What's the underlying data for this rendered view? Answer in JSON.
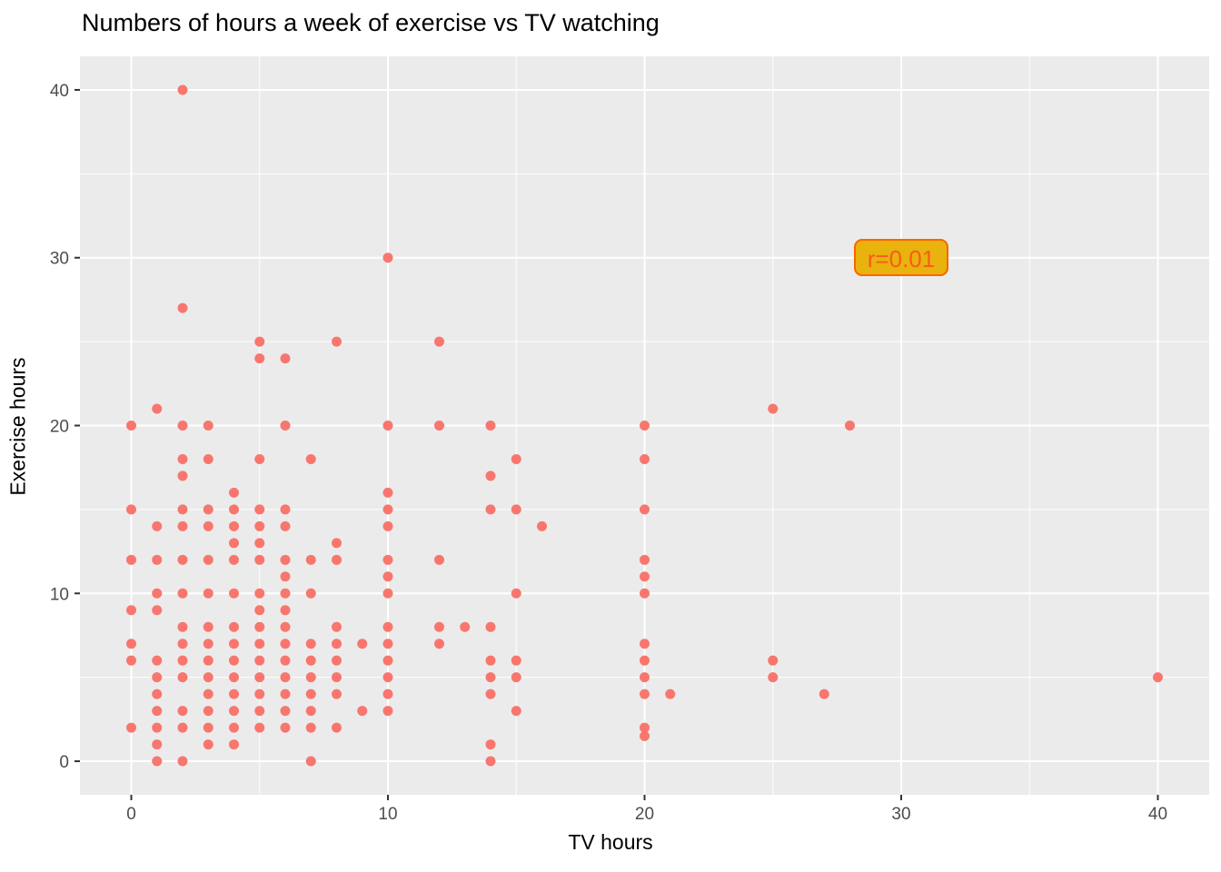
{
  "title": "Numbers of hours a week of exercise vs TV watching",
  "chart_data": {
    "type": "scatter",
    "title": "Numbers of hours a week of exercise vs TV watching",
    "xlabel": "TV hours",
    "ylabel": "Exercise hours",
    "xlim": [
      -2,
      42
    ],
    "ylim": [
      -2,
      42
    ],
    "x_ticks": [
      0,
      10,
      20,
      30,
      40
    ],
    "y_ticks": [
      0,
      10,
      20,
      30,
      40
    ],
    "x_minor_ticks": [
      5,
      15,
      25,
      35
    ],
    "y_minor_ticks": [
      5,
      15,
      25,
      35
    ],
    "grid": true,
    "legend": "none",
    "panel_bg": "#EBEBEB",
    "grid_color": "#FFFFFF",
    "point_color": "#F8766D",
    "point_radius": 5.5,
    "tick_color": "#333333",
    "tick_label_color": "#4D4D4D",
    "annotation": {
      "text": "r=0.01",
      "x": 30,
      "y": 30,
      "fill": "#E8B30C",
      "border_color": "#FB6400",
      "text_color": "#F85C1A"
    },
    "points": [
      [
        2,
        40
      ],
      [
        10,
        30
      ],
      [
        2,
        27
      ],
      [
        5,
        25
      ],
      [
        8,
        25
      ],
      [
        12,
        25
      ],
      [
        5,
        24
      ],
      [
        6,
        24
      ],
      [
        1,
        21
      ],
      [
        25,
        21
      ],
      [
        0,
        20
      ],
      [
        2,
        20
      ],
      [
        3,
        20
      ],
      [
        6,
        20
      ],
      [
        10,
        20
      ],
      [
        12,
        20
      ],
      [
        14,
        20
      ],
      [
        20,
        20
      ],
      [
        28,
        20
      ],
      [
        2,
        18
      ],
      [
        3,
        18
      ],
      [
        5,
        18
      ],
      [
        7,
        18
      ],
      [
        15,
        18
      ],
      [
        20,
        18
      ],
      [
        2,
        17
      ],
      [
        14,
        17
      ],
      [
        4,
        16
      ],
      [
        10,
        16
      ],
      [
        0,
        15
      ],
      [
        2,
        15
      ],
      [
        3,
        15
      ],
      [
        4,
        15
      ],
      [
        5,
        15
      ],
      [
        6,
        15
      ],
      [
        10,
        15
      ],
      [
        14,
        15
      ],
      [
        15,
        15
      ],
      [
        20,
        15
      ],
      [
        1,
        14
      ],
      [
        2,
        14
      ],
      [
        3,
        14
      ],
      [
        4,
        14
      ],
      [
        5,
        14
      ],
      [
        6,
        14
      ],
      [
        10,
        14
      ],
      [
        16,
        14
      ],
      [
        4,
        13
      ],
      [
        5,
        13
      ],
      [
        8,
        13
      ],
      [
        0,
        12
      ],
      [
        1,
        12
      ],
      [
        2,
        12
      ],
      [
        3,
        12
      ],
      [
        4,
        12
      ],
      [
        5,
        12
      ],
      [
        6,
        12
      ],
      [
        7,
        12
      ],
      [
        8,
        12
      ],
      [
        10,
        12
      ],
      [
        12,
        12
      ],
      [
        20,
        12
      ],
      [
        6,
        11
      ],
      [
        10,
        11
      ],
      [
        20,
        11
      ],
      [
        1,
        10
      ],
      [
        2,
        10
      ],
      [
        3,
        10
      ],
      [
        4,
        10
      ],
      [
        5,
        10
      ],
      [
        6,
        10
      ],
      [
        7,
        10
      ],
      [
        10,
        10
      ],
      [
        15,
        10
      ],
      [
        20,
        10
      ],
      [
        0,
        9
      ],
      [
        1,
        9
      ],
      [
        5,
        9
      ],
      [
        6,
        9
      ],
      [
        2,
        8
      ],
      [
        3,
        8
      ],
      [
        4,
        8
      ],
      [
        5,
        8
      ],
      [
        6,
        8
      ],
      [
        8,
        8
      ],
      [
        10,
        8
      ],
      [
        12,
        8
      ],
      [
        13,
        8
      ],
      [
        14,
        8
      ],
      [
        0,
        7
      ],
      [
        2,
        7
      ],
      [
        3,
        7
      ],
      [
        4,
        7
      ],
      [
        5,
        7
      ],
      [
        6,
        7
      ],
      [
        7,
        7
      ],
      [
        8,
        7
      ],
      [
        9,
        7
      ],
      [
        10,
        7
      ],
      [
        12,
        7
      ],
      [
        20,
        7
      ],
      [
        0,
        6
      ],
      [
        1,
        6
      ],
      [
        2,
        6
      ],
      [
        3,
        6
      ],
      [
        4,
        6
      ],
      [
        5,
        6
      ],
      [
        6,
        6
      ],
      [
        7,
        6
      ],
      [
        8,
        6
      ],
      [
        10,
        6
      ],
      [
        14,
        6
      ],
      [
        15,
        6
      ],
      [
        20,
        6
      ],
      [
        25,
        6
      ],
      [
        1,
        5
      ],
      [
        2,
        5
      ],
      [
        3,
        5
      ],
      [
        4,
        5
      ],
      [
        5,
        5
      ],
      [
        6,
        5
      ],
      [
        7,
        5
      ],
      [
        8,
        5
      ],
      [
        10,
        5
      ],
      [
        14,
        5
      ],
      [
        15,
        5
      ],
      [
        20,
        5
      ],
      [
        25,
        5
      ],
      [
        40,
        5
      ],
      [
        1,
        4
      ],
      [
        3,
        4
      ],
      [
        4,
        4
      ],
      [
        5,
        4
      ],
      [
        6,
        4
      ],
      [
        7,
        4
      ],
      [
        8,
        4
      ],
      [
        10,
        4
      ],
      [
        14,
        4
      ],
      [
        20,
        4
      ],
      [
        21,
        4
      ],
      [
        27,
        4
      ],
      [
        1,
        3
      ],
      [
        2,
        3
      ],
      [
        3,
        3
      ],
      [
        4,
        3
      ],
      [
        5,
        3
      ],
      [
        6,
        3
      ],
      [
        7,
        3
      ],
      [
        9,
        3
      ],
      [
        10,
        3
      ],
      [
        15,
        3
      ],
      [
        0,
        2
      ],
      [
        1,
        2
      ],
      [
        2,
        2
      ],
      [
        3,
        2
      ],
      [
        4,
        2
      ],
      [
        5,
        2
      ],
      [
        6,
        2
      ],
      [
        7,
        2
      ],
      [
        8,
        2
      ],
      [
        20,
        2
      ],
      [
        20,
        1.5
      ],
      [
        1,
        1
      ],
      [
        3,
        1
      ],
      [
        4,
        1
      ],
      [
        14,
        1
      ],
      [
        1,
        0
      ],
      [
        2,
        0
      ],
      [
        7,
        0
      ],
      [
        14,
        0
      ]
    ]
  }
}
